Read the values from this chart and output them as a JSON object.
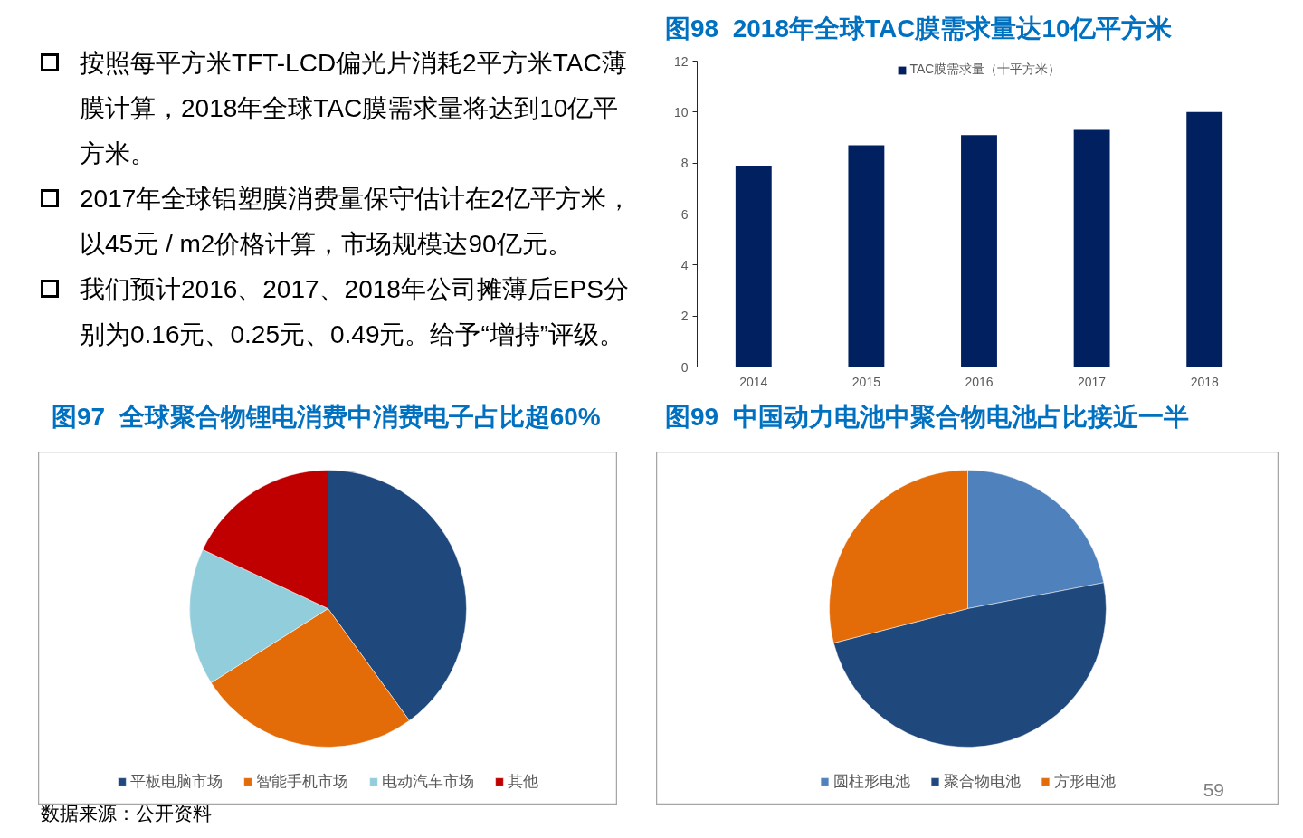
{
  "chart_data": [
    {
      "type": "other",
      "annotations": [
        "按照每平方米TFT-LCD偏光片消耗2平方米TAC薄膜计算，2018年全球TAC膜需求量将达到10亿平方米。",
        "2017年全球铝塑膜消费量保守估计在2亿平方米，以45元 / m2价格计算，市场规模达90亿元。",
        "我们预计2016、2017、2018年公司摊薄后EPS分别为0.16元、0.25元、0.49元。给予“增持”评级。"
      ]
    },
    {
      "type": "bar",
      "title": "图98  2018年全球TAC膜需求量达10亿平方米",
      "categories": [
        "2014",
        "2015",
        "2016",
        "2017",
        "2018"
      ],
      "series": [
        {
          "name": "TAC膜需求量（十平方米）",
          "color": "#002060",
          "values": [
            7.9,
            8.7,
            9.1,
            9.3,
            10
          ]
        }
      ],
      "ylim": [
        0,
        12
      ],
      "yticks": [
        0,
        2,
        4,
        6,
        8,
        10,
        12
      ],
      "grid": false,
      "legend": "top"
    },
    {
      "type": "pie",
      "title": "图97  全球聚合物锂电消费中消费电子占比超60%",
      "categories": [
        "平板电脑市场",
        "智能手机市场",
        "电动汽车市场",
        "其他"
      ],
      "values": [
        40,
        26,
        16,
        18
      ],
      "colors": [
        "#1f497d",
        "#e36c09",
        "#92cddc",
        "#c00000"
      ],
      "legend": "bottom",
      "annotations": [
        "数据来源：公开资料"
      ]
    },
    {
      "type": "pie",
      "title": "图99  中国动力电池中聚合物电池占比接近一半",
      "categories": [
        "圆柱形电池",
        "聚合物电池",
        "方形电池"
      ],
      "values": [
        22,
        49,
        29
      ],
      "colors": [
        "#4f81bd",
        "#1f497d",
        "#e36c09"
      ],
      "legend": "bottom",
      "annotations": [
        "59"
      ]
    }
  ]
}
